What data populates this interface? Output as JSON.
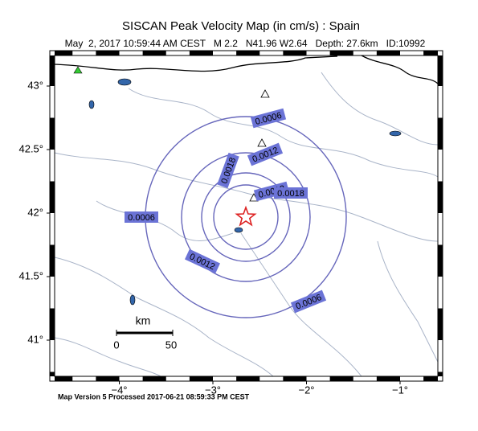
{
  "header": {
    "title": "SISCAN Peak Velocity Map (in cm/s) : Spain",
    "subtitle": "May  2, 2017 10:59:44 AM CEST   M 2.2   N41.96 W2.64   Depth: 27.6km   ID:10992"
  },
  "map": {
    "lat_ticks": [
      {
        "value": 43,
        "label": "43°"
      },
      {
        "value": 42.5,
        "label": "42.5°"
      },
      {
        "value": 42,
        "label": "42°"
      },
      {
        "value": 41.5,
        "label": "41.5°"
      },
      {
        "value": 41,
        "label": "41°"
      }
    ],
    "lon_ticks": [
      {
        "value": -4,
        "label": "−4°"
      },
      {
        "value": -3,
        "label": "−3°"
      },
      {
        "value": -2,
        "label": "−2°"
      },
      {
        "value": -1,
        "label": "−1°"
      }
    ],
    "contours": [
      {
        "label": "0.0006"
      },
      {
        "label": "0.0012"
      },
      {
        "label": "0.0018"
      }
    ],
    "scale": {
      "unit": "km",
      "start": "0",
      "end": "50"
    }
  },
  "footer": "Map Version 5 Processed 2017-06-21 08:59:33 PM CEST"
}
